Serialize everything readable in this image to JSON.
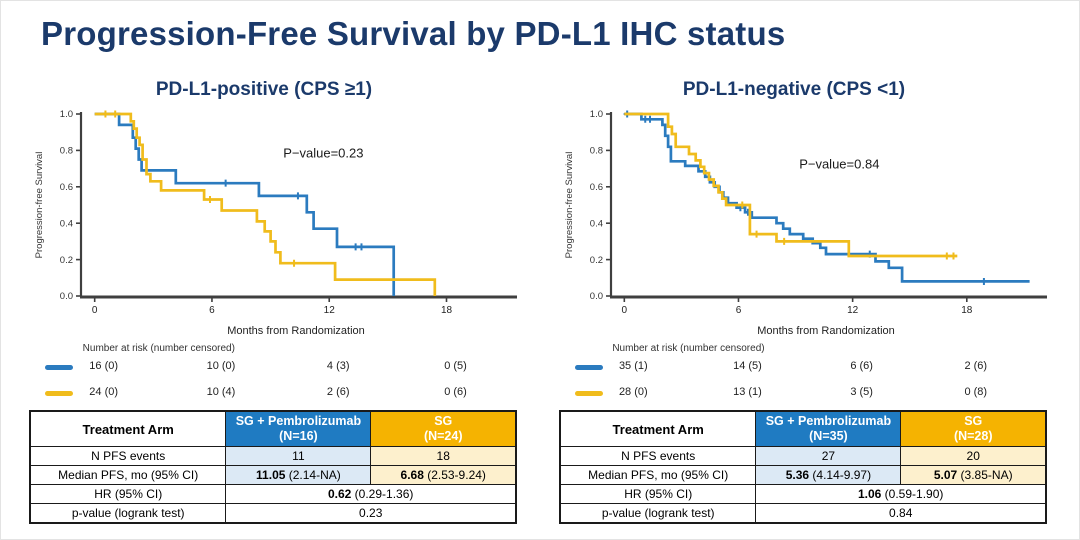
{
  "slide": {
    "title": "Progression-Free Survival by PD-L1 IHC status"
  },
  "colors": {
    "title_navy": "#1B3A6B",
    "curve_blue": "#2B7BBF",
    "curve_gold": "#F0BC1C",
    "header_blue_bg": "#1F7BC2",
    "header_gold_bg": "#F5B301",
    "cell_blue_bg": "#DCE9F5",
    "cell_gold_bg": "#FDF0CD",
    "axis": "#3F3F3F"
  },
  "panels": [
    {
      "title": "PD-L1-positive (CPS ≥1)",
      "risk_caption": "Number at risk (number censored)",
      "risk_rows": [
        {
          "series": "SG + Pembrolizumab",
          "color_key": "curve_blue",
          "values": [
            "16 (0)",
            "10 (0)",
            "4 (3)",
            "0 (5)"
          ]
        },
        {
          "series": "SG",
          "color_key": "curve_gold",
          "values": [
            "24 (0)",
            "10 (4)",
            "2 (6)",
            "0 (6)"
          ]
        }
      ],
      "table": {
        "header_label": "Treatment Arm",
        "arm1_name": "SG + Pembrolizumab",
        "arm1_n": "(N=16)",
        "arm2_name": "SG",
        "arm2_n": "(N=24)",
        "events_label": "N PFS events",
        "events_arm1": "11",
        "events_arm2": "18",
        "median_label": "Median PFS, mo (95% CI)",
        "median_arm1_value": "11.05",
        "median_arm1_ci": " (2.14-NA)",
        "median_arm2_value": "6.68",
        "median_arm2_ci": " (2.53-9.24)",
        "hr_label": "HR (95% CI)",
        "hr_value": "0.62",
        "hr_ci": " (0.29-1.36)",
        "p_label": "p-value (logrank test)",
        "p_value": "0.23"
      }
    },
    {
      "title": "PD-L1-negative (CPS <1)",
      "risk_caption": "Number at risk (number censored)",
      "risk_rows": [
        {
          "series": "SG + Pembrolizumab",
          "color_key": "curve_blue",
          "values": [
            "35 (1)",
            "14 (5)",
            "6 (6)",
            "2 (6)"
          ]
        },
        {
          "series": "SG",
          "color_key": "curve_gold",
          "values": [
            "28 (0)",
            "13 (1)",
            "3 (5)",
            "0 (8)"
          ]
        }
      ],
      "table": {
        "header_label": "Treatment Arm",
        "arm1_name": "SG + Pembrolizumab",
        "arm1_n": "(N=35)",
        "arm2_name": "SG",
        "arm2_n": "(N=28)",
        "events_label": "N PFS events",
        "events_arm1": "27",
        "events_arm2": "20",
        "median_label": "Median PFS, mo (95% CI)",
        "median_arm1_value": "5.36",
        "median_arm1_ci": " (4.14-9.97)",
        "median_arm2_value": "5.07",
        "median_arm2_ci": " (3.85-NA)",
        "hr_label": "HR (95% CI)",
        "hr_value": "1.06",
        "hr_ci": " (0.59-1.90)",
        "p_label": "p-value (logrank test)",
        "p_value": "0.84"
      }
    }
  ],
  "chart_data": [
    {
      "type": "line",
      "subtype": "kaplan_meier_step",
      "title": "PD-L1-positive (CPS ≥1)",
      "xlabel": "Months from Randomization",
      "ylabel": "Progression-free Survival",
      "xlim": [
        -0.7,
        21.3
      ],
      "ylim": [
        0,
        1
      ],
      "xticks": [
        0,
        6,
        12,
        18
      ],
      "yticks": [
        0.0,
        0.2,
        0.4,
        0.6,
        0.8,
        1.0
      ],
      "grid": false,
      "legend": "none",
      "annotation": {
        "text": "P−value=0.23",
        "x": 11.7,
        "y": 0.76
      },
      "series": [
        {
          "name": "SG + Pembrolizumab",
          "color": "#2B7BBF",
          "end_x": 15.3,
          "steps": [
            [
              0,
              1.0
            ],
            [
              1.25,
              0.94
            ],
            [
              1.95,
              0.87
            ],
            [
              2.1,
              0.81
            ],
            [
              2.25,
              0.75
            ],
            [
              2.4,
              0.69
            ],
            [
              4.15,
              0.62
            ],
            [
              8.4,
              0.55
            ],
            [
              10.85,
              0.46
            ],
            [
              11.2,
              0.37
            ],
            [
              12.4,
              0.27
            ],
            [
              15.3,
              0.0
            ]
          ],
          "censors": [
            [
              6.7,
              0.62
            ],
            [
              10.4,
              0.55
            ],
            [
              13.35,
              0.27
            ],
            [
              13.65,
              0.27
            ]
          ]
        },
        {
          "name": "SG",
          "color": "#F0BC1C",
          "end_x": 17.4,
          "steps": [
            [
              0,
              1.0
            ],
            [
              1.85,
              0.96
            ],
            [
              2.0,
              0.92
            ],
            [
              2.15,
              0.87
            ],
            [
              2.3,
              0.83
            ],
            [
              2.45,
              0.75
            ],
            [
              2.65,
              0.67
            ],
            [
              2.85,
              0.63
            ],
            [
              3.4,
              0.58
            ],
            [
              5.6,
              0.53
            ],
            [
              6.5,
              0.47
            ],
            [
              8.3,
              0.41
            ],
            [
              8.7,
              0.355
            ],
            [
              9.0,
              0.3
            ],
            [
              9.25,
              0.24
            ],
            [
              9.5,
              0.18
            ],
            [
              12.3,
              0.09
            ],
            [
              17.4,
              0.0
            ]
          ],
          "censors": [
            [
              0.55,
              1.0
            ],
            [
              1.05,
              1.0
            ],
            [
              5.9,
              0.53
            ],
            [
              10.2,
              0.18
            ]
          ]
        }
      ]
    },
    {
      "type": "line",
      "subtype": "kaplan_meier_step",
      "title": "PD-L1-negative (CPS <1)",
      "xlabel": "Months from Randomization",
      "ylabel": "Progression-free Survival",
      "xlim": [
        -0.7,
        21.9
      ],
      "ylim": [
        0,
        1
      ],
      "xticks": [
        0,
        6,
        12,
        18
      ],
      "yticks": [
        0.0,
        0.2,
        0.4,
        0.6,
        0.8,
        1.0
      ],
      "grid": false,
      "legend": "none",
      "annotation": {
        "text": "P−value=0.84",
        "x": 11.3,
        "y": 0.7
      },
      "series": [
        {
          "name": "SG + Pembrolizumab",
          "color": "#2B7BBF",
          "end_x": 21.3,
          "steps": [
            [
              0,
              1.0
            ],
            [
              0.9,
              0.971
            ],
            [
              2.0,
              0.94
            ],
            [
              2.15,
              0.88
            ],
            [
              2.3,
              0.82
            ],
            [
              2.45,
              0.74
            ],
            [
              3.2,
              0.715
            ],
            [
              3.9,
              0.685
            ],
            [
              4.25,
              0.655
            ],
            [
              4.5,
              0.625
            ],
            [
              4.75,
              0.6
            ],
            [
              5.0,
              0.57
            ],
            [
              5.2,
              0.54
            ],
            [
              5.45,
              0.51
            ],
            [
              5.9,
              0.485
            ],
            [
              6.35,
              0.46
            ],
            [
              6.7,
              0.43
            ],
            [
              8.0,
              0.4
            ],
            [
              8.35,
              0.37
            ],
            [
              8.7,
              0.34
            ],
            [
              9.4,
              0.315
            ],
            [
              9.9,
              0.29
            ],
            [
              10.3,
              0.265
            ],
            [
              10.6,
              0.23
            ],
            [
              13.2,
              0.19
            ],
            [
              13.9,
              0.155
            ],
            [
              14.6,
              0.08
            ]
          ],
          "censors": [
            [
              0.15,
              1.0
            ],
            [
              1.1,
              0.971
            ],
            [
              1.35,
              0.971
            ],
            [
              6.1,
              0.485
            ],
            [
              6.5,
              0.46
            ],
            [
              12.9,
              0.23
            ],
            [
              18.9,
              0.08
            ]
          ]
        },
        {
          "name": "SG",
          "color": "#F0BC1C",
          "end_x": 17.5,
          "steps": [
            [
              0,
              1.0
            ],
            [
              2.3,
              0.93
            ],
            [
              2.5,
              0.89
            ],
            [
              2.7,
              0.82
            ],
            [
              3.4,
              0.78
            ],
            [
              3.75,
              0.745
            ],
            [
              4.0,
              0.71
            ],
            [
              4.2,
              0.675
            ],
            [
              4.45,
              0.64
            ],
            [
              4.7,
              0.605
            ],
            [
              4.95,
              0.57
            ],
            [
              5.15,
              0.535
            ],
            [
              5.35,
              0.5
            ],
            [
              6.6,
              0.34
            ],
            [
              8.0,
              0.3
            ],
            [
              11.8,
              0.22
            ]
          ],
          "censors": [
            [
              6.2,
              0.5
            ],
            [
              6.95,
              0.34
            ],
            [
              8.4,
              0.3
            ],
            [
              16.95,
              0.22
            ],
            [
              17.3,
              0.22
            ]
          ]
        }
      ]
    }
  ]
}
